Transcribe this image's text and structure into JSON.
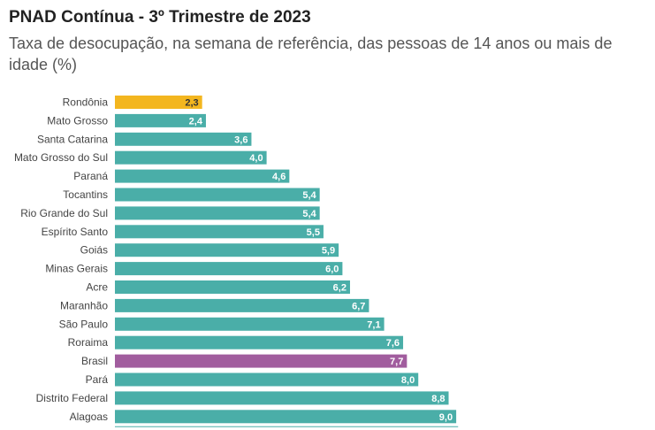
{
  "header": {
    "title": "PNAD Contínua - 3º Trimestre de 2023",
    "subtitle": "Taxa de desocupação, na semana de referência, das pessoas de 14 anos ou mais de idade (%)"
  },
  "colors": {
    "default": "#4aaea8",
    "highlight": "#f3b61f",
    "national": "#a15d9e"
  },
  "chart_data": {
    "type": "bar",
    "orientation": "horizontal",
    "xlim": [
      0,
      10
    ],
    "categories": [
      "Rondônia",
      "Mato Grosso",
      "Santa Catarina",
      "Mato Grosso do Sul",
      "Paraná",
      "Tocantins",
      "Rio Grande do Sul",
      "Espírito Santo",
      "Goiás",
      "Minas Gerais",
      "Acre",
      "Maranhão",
      "São Paulo",
      "Roraima",
      "Brasil",
      "Pará",
      "Distrito Federal",
      "Alagoas"
    ],
    "values": [
      2.3,
      2.4,
      3.6,
      4.0,
      4.6,
      5.4,
      5.4,
      5.5,
      5.9,
      6.0,
      6.2,
      6.7,
      7.1,
      7.6,
      7.7,
      8.0,
      8.8,
      9.0
    ],
    "value_labels": [
      "2,3",
      "2,4",
      "3,6",
      "4,0",
      "4,6",
      "5,4",
      "5,4",
      "5,5",
      "5,9",
      "6,0",
      "6,2",
      "6,7",
      "7,1",
      "7,6",
      "7,7",
      "8,0",
      "8,8",
      "9,0"
    ],
    "bar_colors": [
      "highlight",
      "default",
      "default",
      "default",
      "default",
      "default",
      "default",
      "default",
      "default",
      "default",
      "default",
      "default",
      "default",
      "default",
      "national",
      "default",
      "default",
      "default"
    ],
    "grid": false,
    "legend": "none"
  }
}
